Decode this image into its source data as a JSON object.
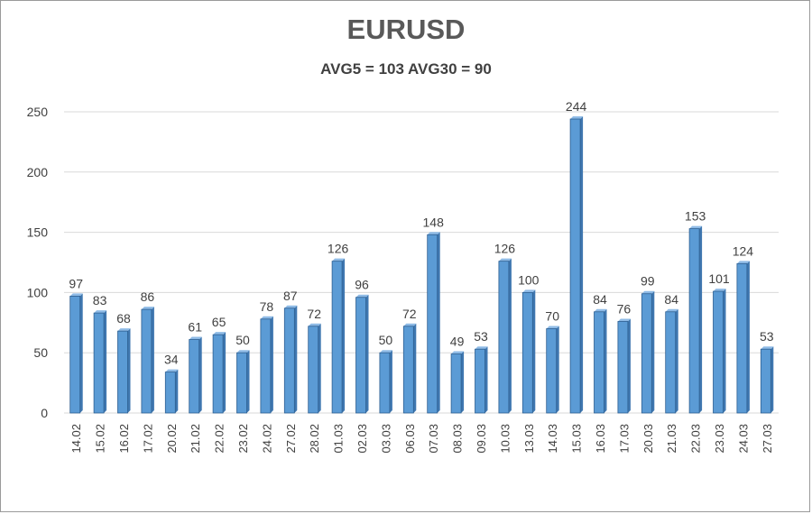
{
  "chart_data": {
    "type": "bar",
    "title": "EURUSD",
    "subtitle": "AVG5 = 103 AVG30 = 90",
    "categories": [
      "14.02",
      "15.02",
      "16.02",
      "17.02",
      "20.02",
      "21.02",
      "22.02",
      "23.02",
      "24.02",
      "27.02",
      "28.02",
      "01.03",
      "02.03",
      "03.03",
      "06.03",
      "07.03",
      "08.03",
      "09.03",
      "10.03",
      "13.03",
      "14.03",
      "15.03",
      "16.03",
      "17.03",
      "20.03",
      "21.03",
      "22.03",
      "23.03",
      "24.03",
      "27.03"
    ],
    "values": [
      97,
      83,
      68,
      86,
      34,
      61,
      65,
      50,
      78,
      87,
      72,
      126,
      96,
      50,
      72,
      148,
      49,
      53,
      126,
      100,
      70,
      244,
      84,
      76,
      99,
      84,
      153,
      101,
      124,
      53
    ],
    "ylim": [
      0,
      250
    ],
    "yticks": [
      0,
      50,
      100,
      150,
      200,
      250
    ],
    "grid": true,
    "legend": "none",
    "bar_color": "#5b9bd5",
    "bar_side_color": "#3f77b0",
    "bar_edge_color": "#2e5f91",
    "grid_color": "#d9d9d9",
    "text_color": "#404040"
  }
}
